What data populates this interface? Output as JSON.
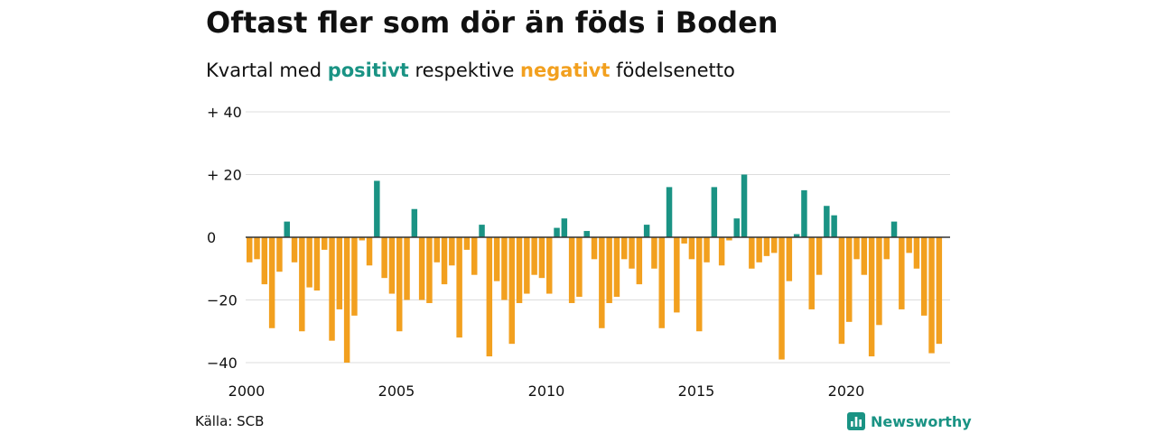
{
  "colors": {
    "positive": "#1a9384",
    "negative": "#f2a01f",
    "grid": "#dddddd",
    "zero_line": "#333333",
    "brand": "#1a9384"
  },
  "header": {
    "title": "Oftast fler som dör än föds i Boden",
    "subtitle_pre": "Kvartal med ",
    "subtitle_pos": "positivt",
    "subtitle_mid": " respektive ",
    "subtitle_neg": "negativt",
    "subtitle_post": " födelsenetto"
  },
  "footer": {
    "source": "Källa: SCB",
    "brand": "Newsworthy",
    "brand_icon": "newsworthy-logo-icon"
  },
  "chart_data": {
    "type": "bar",
    "title": "Oftast fler som dör än föds i Boden",
    "subtitle": "Kvartal med positivt respektive negativt födelsenetto",
    "xlabel": "",
    "ylabel": "",
    "start_year": 2000,
    "periods_per_year": 4,
    "ylim": [
      -40,
      40
    ],
    "y_ticks": [
      {
        "value": 40,
        "label": "+ 40"
      },
      {
        "value": 20,
        "label": "+ 20"
      },
      {
        "value": 0,
        "label": "0"
      },
      {
        "value": -20,
        "label": "−20"
      },
      {
        "value": -40,
        "label": "−40"
      }
    ],
    "x_ticks": [
      {
        "year": 2000,
        "label": "2000"
      },
      {
        "year": 2005,
        "label": "2005"
      },
      {
        "year": 2010,
        "label": "2010"
      },
      {
        "year": 2015,
        "label": "2015"
      },
      {
        "year": 2020,
        "label": "2020"
      }
    ],
    "grid": true,
    "values": [
      -8,
      -7,
      -15,
      -29,
      -11,
      5,
      -8,
      -30,
      -16,
      -17,
      -4,
      -33,
      -23,
      -40,
      -25,
      -1,
      -9,
      18,
      -13,
      -18,
      -30,
      -20,
      9,
      -20,
      -21,
      -8,
      -15,
      -9,
      -32,
      -4,
      -12,
      4,
      -38,
      -14,
      -20,
      -34,
      -21,
      -18,
      -12,
      -13,
      -18,
      3,
      6,
      -21,
      -19,
      2,
      -7,
      -29,
      -21,
      -19,
      -7,
      -10,
      -15,
      4,
      -10,
      -29,
      16,
      -24,
      -2,
      -7,
      -30,
      -8,
      16,
      -9,
      -1,
      6,
      20,
      -10,
      -8,
      -6,
      -5,
      -39,
      -14,
      1,
      15,
      -23,
      -12,
      10,
      7,
      -34,
      -27,
      -7,
      -12,
      -38,
      -28,
      -7,
      5,
      -23,
      -5,
      -10,
      -25,
      -37,
      -34
    ]
  }
}
